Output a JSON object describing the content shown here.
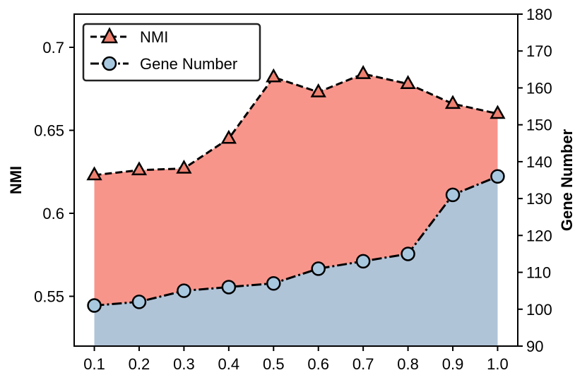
{
  "chart_data": {
    "type": "area",
    "categories": [
      "0.1",
      "0.2",
      "0.3",
      "0.4",
      "0.5",
      "0.6",
      "0.7",
      "0.8",
      "0.9",
      "1.0"
    ],
    "x": [
      0.1,
      0.2,
      0.3,
      0.4,
      0.5,
      0.6,
      0.7,
      0.8,
      0.9,
      1.0
    ],
    "series": [
      {
        "name": "NMI",
        "axis": "left",
        "values": [
          0.623,
          0.626,
          0.627,
          0.645,
          0.682,
          0.673,
          0.684,
          0.678,
          0.666,
          0.66
        ],
        "fill_color": "#f8958b",
        "marker": "triangle",
        "marker_color": "#ee8070",
        "line_style": "dashed"
      },
      {
        "name": "Gene Number",
        "axis": "right",
        "values": [
          101,
          102,
          105,
          106,
          107,
          111,
          113,
          115,
          131,
          136
        ],
        "fill_color": "#b0c4d8",
        "marker": "circle",
        "marker_color": "#a8c8e0",
        "line_style": "dashdot"
      }
    ],
    "ylabel_left": "NMI",
    "ylabel_right": "Gene Number",
    "ylim_left": [
      0.52,
      0.72
    ],
    "ylim_right": [
      90,
      180
    ],
    "yticks_left": [
      0.55,
      0.6,
      0.65,
      0.7
    ],
    "yticks_left_labels": [
      "0.55",
      "0.6",
      "0.65",
      "0.7"
    ],
    "yticks_right": [
      90,
      100,
      110,
      120,
      130,
      140,
      150,
      160,
      170,
      180
    ],
    "yticks_right_labels": [
      "90",
      "100",
      "110",
      "120",
      "130",
      "140",
      "150",
      "160",
      "170",
      "180"
    ],
    "xlim": [
      0.055,
      1.045
    ],
    "legend_position": "top-left",
    "grid": false
  }
}
